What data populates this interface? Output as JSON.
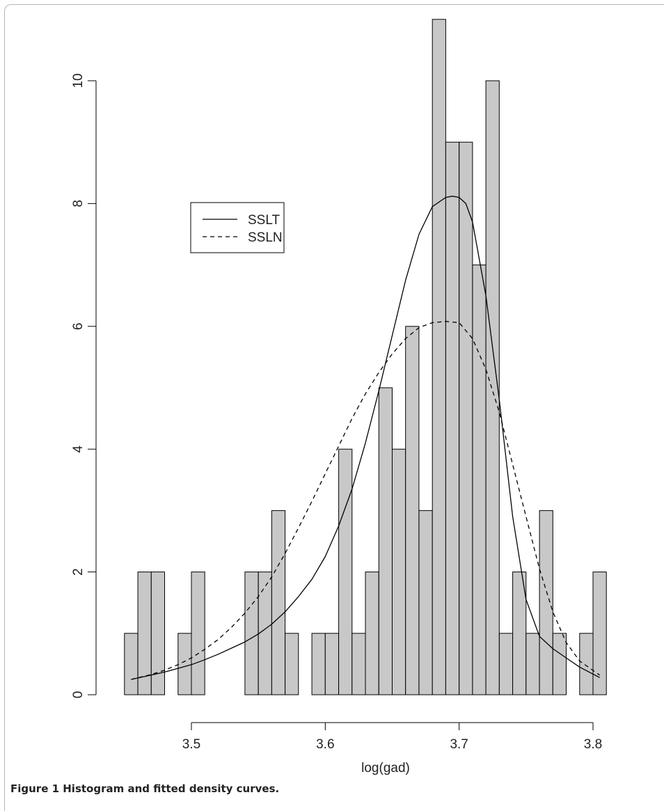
{
  "caption": "Figure 1 Histogram and fitted density curves.",
  "chart_data": {
    "type": "bar",
    "title": "",
    "xlabel": "log(gad)",
    "ylabel": "",
    "xlim": [
      3.45,
      3.81
    ],
    "ylim": [
      0,
      11
    ],
    "bin_width": 0.01,
    "bins": [
      {
        "x0": 3.45,
        "x1": 3.46,
        "count": 1
      },
      {
        "x0": 3.46,
        "x1": 3.47,
        "count": 2
      },
      {
        "x0": 3.47,
        "x1": 3.48,
        "count": 2
      },
      {
        "x0": 3.49,
        "x1": 3.5,
        "count": 1
      },
      {
        "x0": 3.5,
        "x1": 3.51,
        "count": 2
      },
      {
        "x0": 3.54,
        "x1": 3.55,
        "count": 2
      },
      {
        "x0": 3.55,
        "x1": 3.56,
        "count": 2
      },
      {
        "x0": 3.56,
        "x1": 3.57,
        "count": 3
      },
      {
        "x0": 3.57,
        "x1": 3.58,
        "count": 1
      },
      {
        "x0": 3.59,
        "x1": 3.6,
        "count": 1
      },
      {
        "x0": 3.6,
        "x1": 3.61,
        "count": 1
      },
      {
        "x0": 3.61,
        "x1": 3.62,
        "count": 4
      },
      {
        "x0": 3.62,
        "x1": 3.63,
        "count": 1
      },
      {
        "x0": 3.63,
        "x1": 3.64,
        "count": 2
      },
      {
        "x0": 3.64,
        "x1": 3.65,
        "count": 5
      },
      {
        "x0": 3.65,
        "x1": 3.66,
        "count": 4
      },
      {
        "x0": 3.66,
        "x1": 3.67,
        "count": 6
      },
      {
        "x0": 3.67,
        "x1": 3.68,
        "count": 3
      },
      {
        "x0": 3.68,
        "x1": 3.69,
        "count": 11
      },
      {
        "x0": 3.69,
        "x1": 3.7,
        "count": 9
      },
      {
        "x0": 3.7,
        "x1": 3.71,
        "count": 9
      },
      {
        "x0": 3.71,
        "x1": 3.72,
        "count": 7
      },
      {
        "x0": 3.72,
        "x1": 3.73,
        "count": 10
      },
      {
        "x0": 3.73,
        "x1": 3.74,
        "count": 1
      },
      {
        "x0": 3.74,
        "x1": 3.75,
        "count": 2
      },
      {
        "x0": 3.75,
        "x1": 3.76,
        "count": 1
      },
      {
        "x0": 3.76,
        "x1": 3.77,
        "count": 3
      },
      {
        "x0": 3.77,
        "x1": 3.78,
        "count": 1
      },
      {
        "x0": 3.79,
        "x1": 3.8,
        "count": 1
      },
      {
        "x0": 3.8,
        "x1": 3.81,
        "count": 2
      }
    ],
    "x_ticks": [
      3.5,
      3.6,
      3.7,
      3.8
    ],
    "x_tick_labels": [
      "3.5",
      "3.6",
      "3.7",
      "3.8"
    ],
    "y_ticks": [
      0,
      2,
      4,
      6,
      8,
      10
    ],
    "y_tick_labels": [
      "0",
      "2",
      "4",
      "6",
      "8",
      "10"
    ],
    "series": [
      {
        "name": "SSLT",
        "style": "solid",
        "x": [
          3.455,
          3.47,
          3.48,
          3.49,
          3.5,
          3.51,
          3.52,
          3.53,
          3.54,
          3.55,
          3.56,
          3.57,
          3.58,
          3.59,
          3.6,
          3.61,
          3.62,
          3.63,
          3.64,
          3.65,
          3.66,
          3.67,
          3.68,
          3.69,
          3.695,
          3.7,
          3.705,
          3.71,
          3.72,
          3.73,
          3.74,
          3.75,
          3.76,
          3.77,
          3.78,
          3.79,
          3.805
        ],
        "y": [
          0.25,
          0.32,
          0.37,
          0.43,
          0.49,
          0.57,
          0.66,
          0.76,
          0.86,
          0.99,
          1.15,
          1.35,
          1.6,
          1.88,
          2.25,
          2.75,
          3.35,
          4.1,
          4.95,
          5.85,
          6.75,
          7.5,
          7.95,
          8.1,
          8.12,
          8.1,
          8.0,
          7.7,
          6.5,
          4.8,
          2.9,
          1.55,
          0.95,
          0.75,
          0.6,
          0.45,
          0.28
        ]
      },
      {
        "name": "SSLN",
        "style": "dashed",
        "x": [
          3.455,
          3.47,
          3.48,
          3.49,
          3.5,
          3.51,
          3.52,
          3.53,
          3.54,
          3.55,
          3.56,
          3.57,
          3.58,
          3.59,
          3.6,
          3.61,
          3.62,
          3.63,
          3.64,
          3.65,
          3.66,
          3.67,
          3.68,
          3.69,
          3.7,
          3.71,
          3.72,
          3.73,
          3.74,
          3.75,
          3.76,
          3.77,
          3.78,
          3.79,
          3.805
        ],
        "y": [
          0.25,
          0.33,
          0.4,
          0.49,
          0.6,
          0.74,
          0.9,
          1.1,
          1.33,
          1.6,
          1.92,
          2.3,
          2.72,
          3.15,
          3.6,
          4.05,
          4.5,
          4.9,
          5.25,
          5.55,
          5.8,
          5.98,
          6.06,
          6.08,
          6.06,
          5.8,
          5.3,
          4.6,
          3.75,
          2.9,
          2.05,
          1.35,
          0.85,
          0.55,
          0.32
        ]
      }
    ],
    "legend": {
      "placement": "top-left",
      "entries": [
        "SSLT",
        "SSLN"
      ]
    },
    "bar_color": "#c8c8c8",
    "bar_edge_color": "#000000",
    "line_color": "#000000",
    "grid": false
  }
}
